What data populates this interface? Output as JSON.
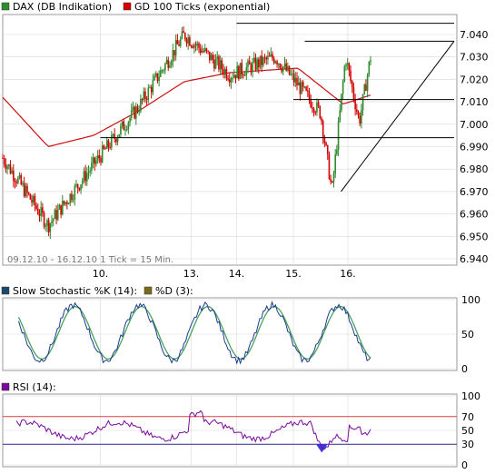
{
  "colors": {
    "up": "#2e8b2e",
    "down": "#d40000",
    "ma": "#cc1010",
    "k": "#1a3c8c",
    "d": "#4aa060",
    "rsi": "#7a0a9e",
    "rsi_fill": "#3a3adf",
    "rsi70": "#d84040",
    "rsi30": "#2a2a90",
    "grid": "#d8d8d8",
    "frame": "#999999"
  },
  "legend": {
    "main_series": "DAX (DB Indikation)",
    "ma_series": "GD 100 Ticks (exponential)"
  },
  "info_text": "09.12.10 - 16.12.10   1 Tick = 15 Min.",
  "chart_data": [
    {
      "type": "candlestick",
      "name": "price",
      "x_labels": [
        "10.",
        "13.",
        "14.",
        "15.",
        "16."
      ],
      "y_ticks": [
        "7.040",
        "7.030",
        "7.020",
        "7.010",
        "7.000",
        "6.990",
        "6.980",
        "6.970",
        "6.960",
        "6.950",
        "6.940"
      ],
      "ylim": [
        6940,
        7045
      ],
      "key_points": [
        {
          "t": 0,
          "v": 6985
        },
        {
          "t": 1,
          "v": 6955
        },
        {
          "t": 2,
          "v": 6982
        },
        {
          "t": 3,
          "v": 7008
        },
        {
          "t": 4,
          "v": 7040
        },
        {
          "t": 5,
          "v": 7022
        },
        {
          "t": 6,
          "v": 7030
        },
        {
          "t": 7,
          "v": 7005
        },
        {
          "t": 7.25,
          "v": 6970
        },
        {
          "t": 7.55,
          "v": 7030
        },
        {
          "t": 7.85,
          "v": 7001
        },
        {
          "t": 8.1,
          "v": 7030
        }
      ],
      "moving_average": [
        {
          "t": 0,
          "v": 7012
        },
        {
          "t": 1,
          "v": 6990
        },
        {
          "t": 2,
          "v": 6995
        },
        {
          "t": 3,
          "v": 7006
        },
        {
          "t": 4,
          "v": 7019
        },
        {
          "t": 5,
          "v": 7023
        },
        {
          "t": 6.5,
          "v": 7025
        },
        {
          "t": 7.5,
          "v": 7009
        },
        {
          "t": 8.1,
          "v": 7013
        }
      ],
      "horizontal_lines": [
        {
          "value": 7045,
          "from_t": 5.15,
          "to_t": 10
        },
        {
          "value": 7037,
          "from_t": 6.65,
          "to_t": 10
        },
        {
          "value": 7011,
          "from_t": 6.4,
          "to_t": 10
        },
        {
          "value": 6994,
          "from_t": 2.15,
          "to_t": 10
        }
      ],
      "trend_line": {
        "from": {
          "t": 7.45,
          "v": 6970
        },
        "to": {
          "t": 10,
          "v": 7037
        }
      }
    },
    {
      "type": "line",
      "name": "stochastic",
      "series": [
        {
          "name": "Slow Stochastic %K (14):",
          "key": "k"
        },
        {
          "name": "%D (3):",
          "key": "d"
        }
      ],
      "y_ticks": [
        "100",
        "50",
        "0"
      ],
      "ylim": [
        0,
        100
      ]
    },
    {
      "type": "line",
      "name": "rsi",
      "series": [
        {
          "name": "RSI (14):",
          "key": "rsi"
        }
      ],
      "y_ticks": [
        "100",
        "70",
        "50",
        "30",
        "0"
      ],
      "ylim": [
        0,
        100
      ],
      "levels": [
        70,
        30
      ]
    }
  ]
}
